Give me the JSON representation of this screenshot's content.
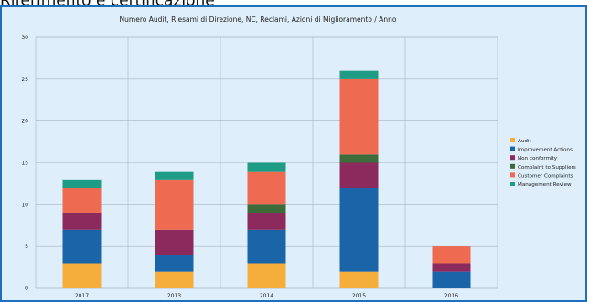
{
  "page": {
    "caption": "Riferimento e certificazione"
  },
  "colors": {
    "frame_border": "#1f6fbf",
    "chart_bg": "#deeefa",
    "grid": "#aab6c2"
  },
  "chart_data": {
    "type": "bar",
    "stacked": true,
    "title": "Numero Audit, Riesami di Direzione, NC, Reclami, Azioni di Miglioramento / Anno",
    "xlabel": "",
    "ylabel": "",
    "categories": [
      "2017",
      "2013",
      "2014",
      "2015",
      "2016"
    ],
    "ylim": [
      0,
      30
    ],
    "yticks": [
      0,
      5,
      10,
      15,
      20,
      25,
      30
    ],
    "grid": true,
    "legend_position": "right",
    "series": [
      {
        "name": "Audit",
        "color": "#f5ad3c",
        "values": [
          3,
          2,
          3,
          2,
          0
        ]
      },
      {
        "name": "Improvement Actions",
        "color": "#1a64a8",
        "values": [
          4,
          2,
          4,
          10,
          2
        ]
      },
      {
        "name": "Non conformity",
        "color": "#8c2a5e",
        "values": [
          2,
          3,
          2,
          3,
          1
        ]
      },
      {
        "name": "Complaint to Suppliers",
        "color": "#3d6b3a",
        "values": [
          0,
          0,
          1,
          1,
          0
        ]
      },
      {
        "name": "Customer Complaints",
        "color": "#ee6a50",
        "values": [
          3,
          6,
          4,
          9,
          2
        ]
      },
      {
        "name": "Management Review",
        "color": "#1e9c86",
        "values": [
          1,
          1,
          1,
          1,
          0
        ]
      }
    ]
  }
}
